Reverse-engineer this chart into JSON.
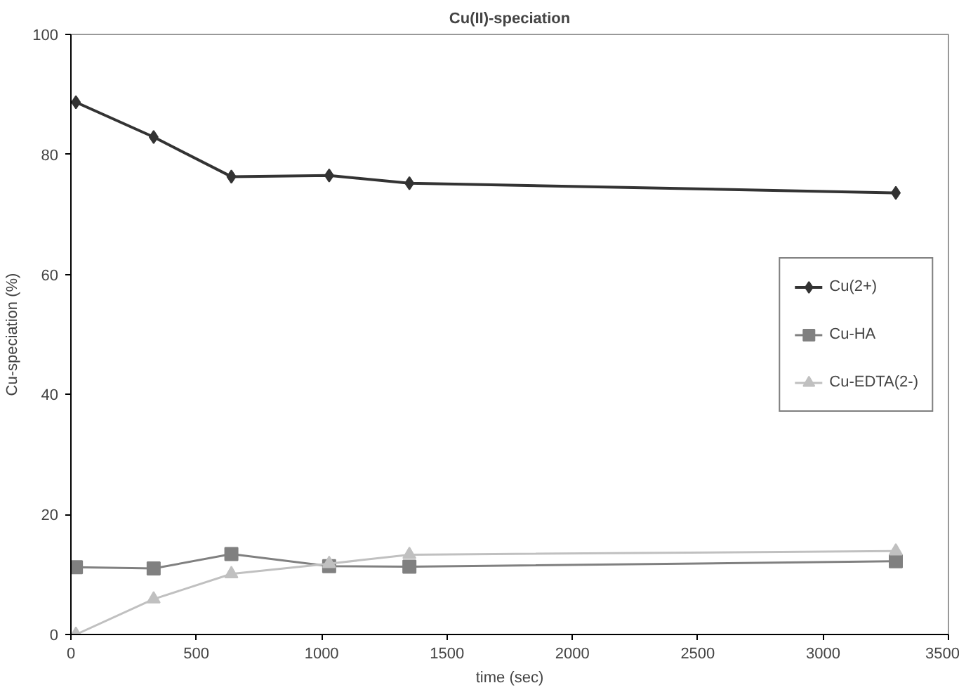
{
  "chart_data": {
    "type": "line",
    "title": "Cu(II)-speciation",
    "xlabel": "time (sec)",
    "ylabel": "Cu-speciation (%)",
    "x": [
      20,
      330,
      640,
      1030,
      1350,
      3290
    ],
    "series": [
      {
        "name": "Cu(2+)",
        "color": "#333333",
        "marker": "diamond",
        "values": [
          88.7,
          82.9,
          76.3,
          76.5,
          75.2,
          73.6
        ]
      },
      {
        "name": "Cu-HA",
        "color": "#808080",
        "marker": "square",
        "values": [
          11.2,
          11.0,
          13.4,
          11.4,
          11.3,
          12.2
        ]
      },
      {
        "name": "Cu-EDTA(2-)",
        "color": "#c0c0c0",
        "marker": "triangle",
        "values": [
          0,
          5.9,
          10.1,
          11.8,
          13.3,
          13.9
        ]
      }
    ],
    "xlim": [
      0,
      3500
    ],
    "xticks": [
      0,
      500,
      1000,
      1500,
      2000,
      2500,
      3000,
      3500
    ],
    "ylim": [
      0,
      100
    ],
    "yticks": [
      0,
      20,
      40,
      60,
      80,
      100
    ],
    "grid": false,
    "legend": "right",
    "line_style": "solid"
  }
}
